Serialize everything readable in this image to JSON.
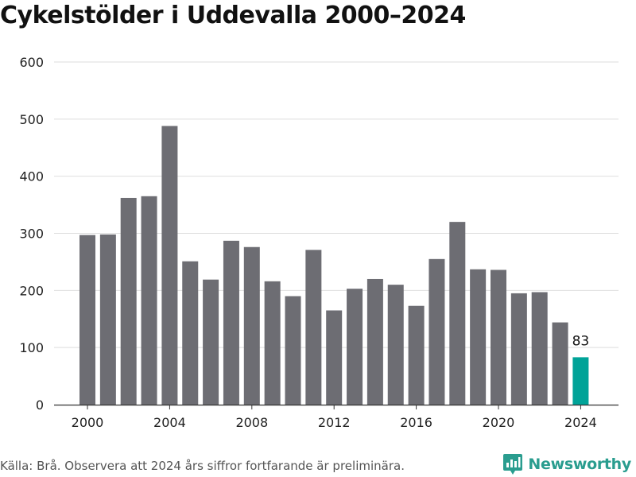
{
  "chart_data": {
    "type": "bar",
    "title": "Cykelstölder i Uddevalla 2000–2024",
    "xlabel": "",
    "ylabel": "",
    "ylim": [
      0,
      600
    ],
    "y_ticks": [
      0,
      100,
      200,
      300,
      400,
      500,
      600
    ],
    "x_ticks": [
      "2000",
      "2004",
      "2008",
      "2012",
      "2016",
      "2020",
      "2024"
    ],
    "categories": [
      "2000",
      "2001",
      "2002",
      "2003",
      "2004",
      "2005",
      "2006",
      "2007",
      "2008",
      "2009",
      "2010",
      "2011",
      "2012",
      "2013",
      "2014",
      "2015",
      "2016",
      "2017",
      "2018",
      "2019",
      "2020",
      "2021",
      "2022",
      "2023",
      "2024"
    ],
    "values": [
      297,
      298,
      362,
      365,
      488,
      251,
      219,
      287,
      276,
      216,
      190,
      271,
      165,
      203,
      220,
      210,
      173,
      255,
      320,
      237,
      236,
      195,
      197,
      144,
      83
    ],
    "highlight_category": "2024",
    "annotations": [
      {
        "category": "2024",
        "text": "83"
      }
    ],
    "grid": true,
    "colors": {
      "bar": "#6d6d73",
      "highlight": "#00a398",
      "grid": "#dedede",
      "axis": "#333333"
    }
  },
  "footer": {
    "source": "Källa: Brå. Observera att 2024 års siffror fortfarande är preliminära."
  },
  "brand": {
    "name": "Newsworthy",
    "icon": "newsworthy-logo-icon",
    "color": "#2a9d8f"
  }
}
